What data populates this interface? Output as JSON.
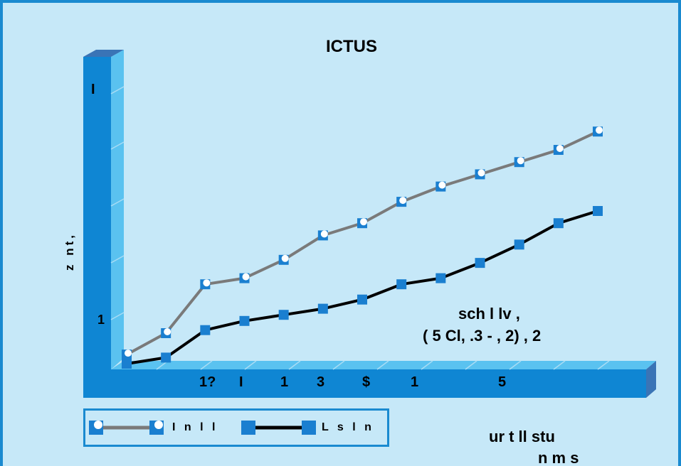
{
  "chart_data": {
    "type": "line",
    "title": "ICTUS",
    "ylabel": "z nt,",
    "xlabel_line1": "ur t ll stu",
    "xlabel_line2": "n m s",
    "y_tick_labels": [
      "I",
      "1"
    ],
    "x_tick_labels": [
      "1?",
      "I",
      "1",
      "3",
      "$",
      "1",
      "5"
    ],
    "annotation_line1": "sch l lv ,",
    "annotation_line2": "( 5 Cl, .3 - , 2) , 2",
    "ylim": [
      0,
      10
    ],
    "x": [
      0,
      1,
      2,
      3,
      4,
      5,
      6,
      7,
      8,
      9,
      10,
      11,
      12
    ],
    "series": [
      {
        "name": "I n l l",
        "values": [
          0.3,
          1.0,
          2.6,
          2.8,
          3.4,
          4.2,
          4.6,
          5.3,
          5.8,
          6.2,
          6.6,
          7.0,
          7.6
        ]
      },
      {
        "name": "L s l n",
        "values": [
          0.0,
          0.2,
          1.1,
          1.4,
          1.6,
          1.8,
          2.1,
          2.6,
          2.8,
          3.3,
          3.9,
          4.6,
          5.0
        ]
      }
    ],
    "colors": {
      "series1_line": "#7a7a7a",
      "series2_line": "#000000",
      "marker": "#1a7fd0",
      "wall": "#0f86d3",
      "background": "#c6e8f8"
    },
    "grid": false,
    "legend_position": "bottom-left"
  }
}
